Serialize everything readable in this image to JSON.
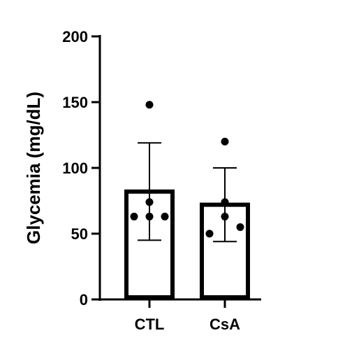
{
  "chart_data": {
    "type": "bar",
    "title": "",
    "xlabel": "",
    "ylabel": "Glycemia (mg/dL)",
    "ylim": [
      0,
      200
    ],
    "yticks": [
      0,
      50,
      100,
      150,
      200
    ],
    "categories": [
      "CTL",
      "CsA"
    ],
    "series": [
      {
        "values": [
          82,
          72
        ],
        "error_upper": [
          119,
          100
        ],
        "error_lower": [
          45,
          44
        ]
      }
    ],
    "points": [
      [
        148,
        74,
        63,
        63,
        63
      ],
      [
        120,
        74,
        63,
        55,
        50
      ]
    ],
    "grid": false,
    "legend": "none",
    "bar_fill": "#ffffff",
    "bar_stroke": "#000000",
    "point_color": "#000000"
  }
}
